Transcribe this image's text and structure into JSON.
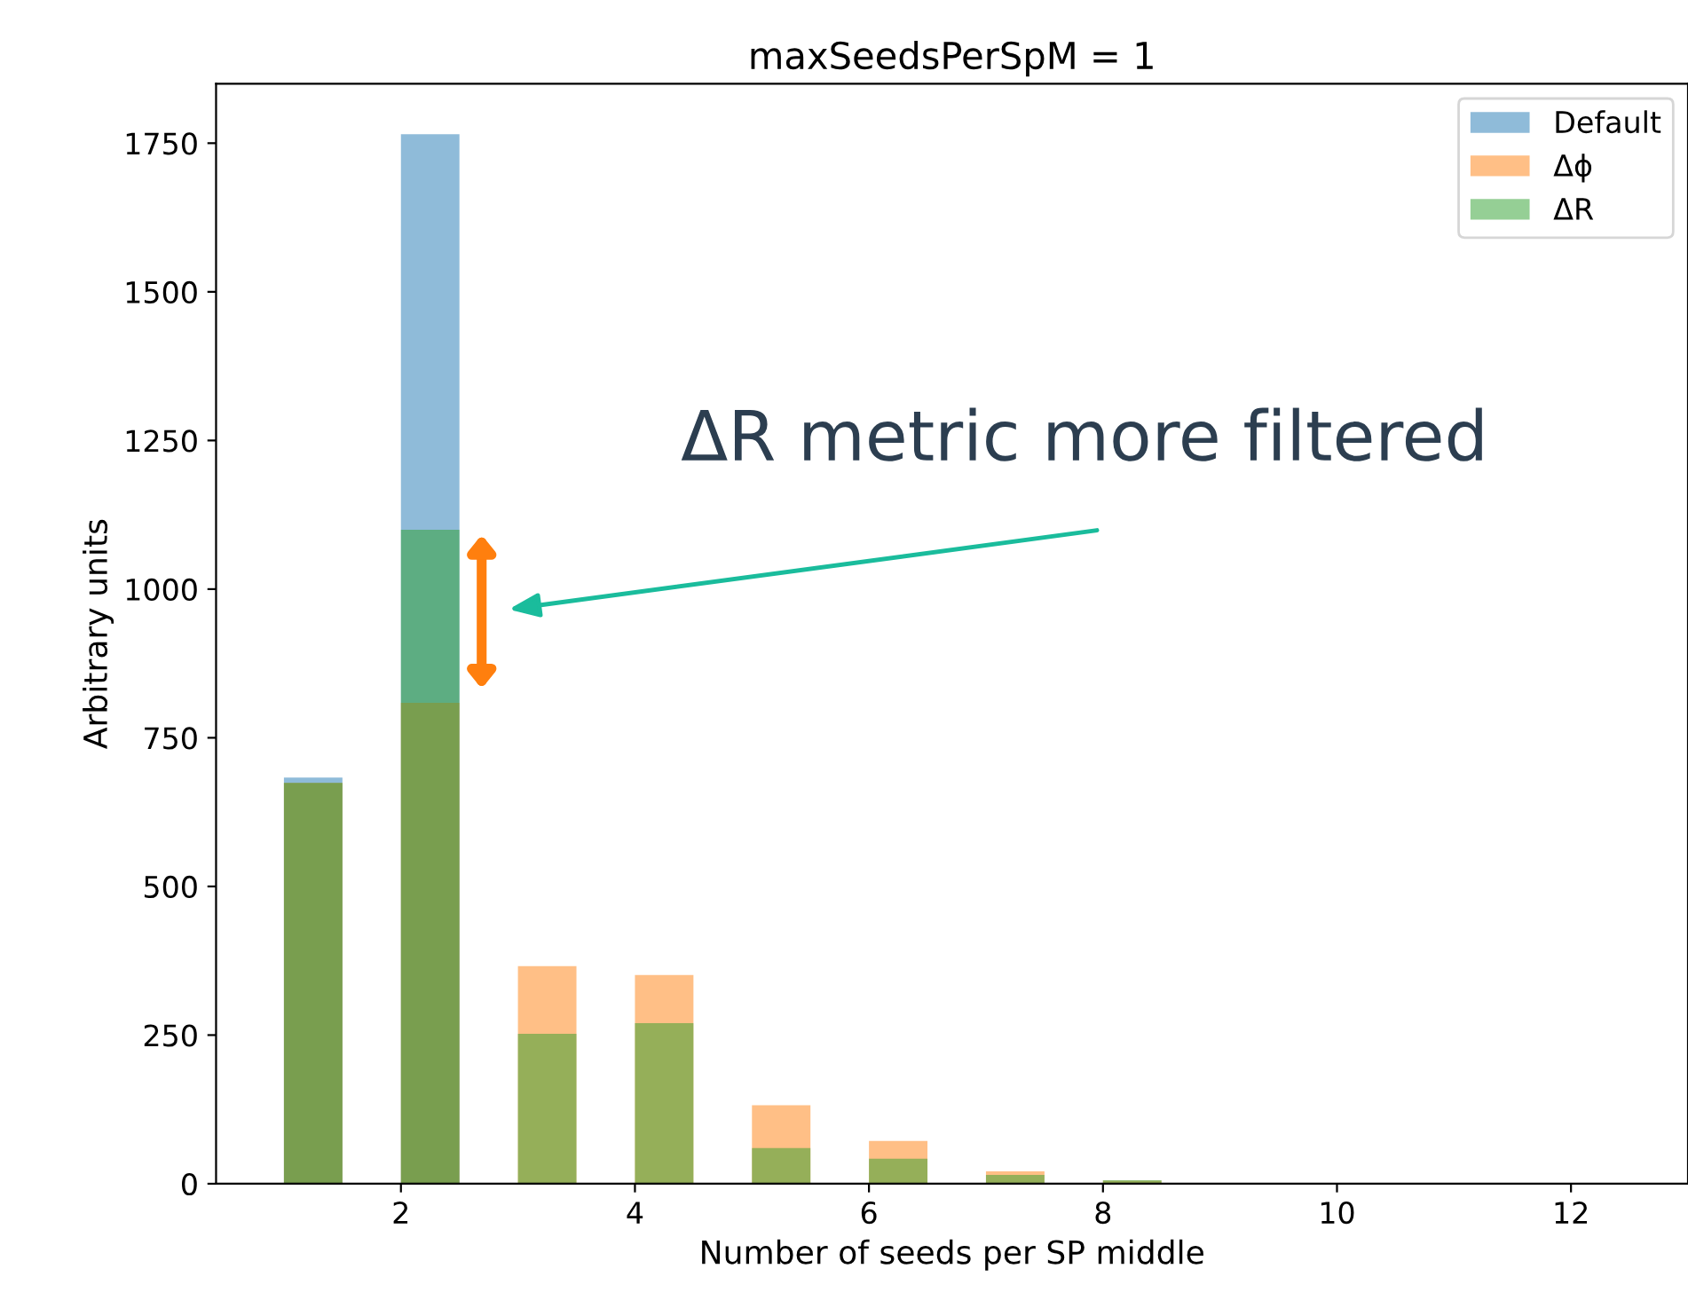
{
  "chart_data": {
    "type": "histogram",
    "title": "maxSeedsPerSpM = 1",
    "xlabel": "Number of seeds per SP middle",
    "ylabel": "Arbitrary units",
    "bins": [
      1,
      1.5,
      2,
      2.5,
      3,
      3.5,
      4,
      4.5,
      5,
      5.5,
      6,
      6.5,
      7,
      7.5,
      8,
      8.5,
      9,
      9.5,
      10,
      10.5,
      11,
      11.5,
      12,
      12.5,
      13
    ],
    "series": [
      {
        "name": "Default",
        "color": "#1f77b4",
        "values": [
          683,
          0,
          1765,
          0,
          0,
          0,
          0,
          0,
          0,
          0,
          0,
          0,
          0,
          0,
          0,
          0,
          0,
          0,
          0,
          0,
          0,
          0,
          0,
          0
        ]
      },
      {
        "name": "Δϕ",
        "color": "#ff7f0e",
        "values": [
          674,
          0,
          809,
          0,
          366,
          0,
          351,
          0,
          132,
          0,
          72,
          0,
          21,
          0,
          5,
          0,
          0,
          0,
          0,
          0,
          0,
          0,
          0,
          0
        ]
      },
      {
        "name": "ΔR",
        "color": "#2ca02c",
        "values": [
          674,
          0,
          1100,
          0,
          252,
          0,
          270,
          0,
          60,
          0,
          42,
          0,
          15,
          0,
          6,
          0,
          0,
          0,
          0,
          0,
          0,
          0,
          0,
          0
        ]
      }
    ],
    "annotations": [
      "ΔR metric more filtered"
    ],
    "xlim": [
      0.42,
      13.0
    ],
    "ylim": [
      0,
      1850
    ],
    "xticks": [
      2,
      4,
      6,
      8,
      10,
      12
    ],
    "yticks": [
      0,
      250,
      500,
      750,
      1000,
      1250,
      1500,
      1750
    ],
    "legend": "top right",
    "grid": false
  }
}
